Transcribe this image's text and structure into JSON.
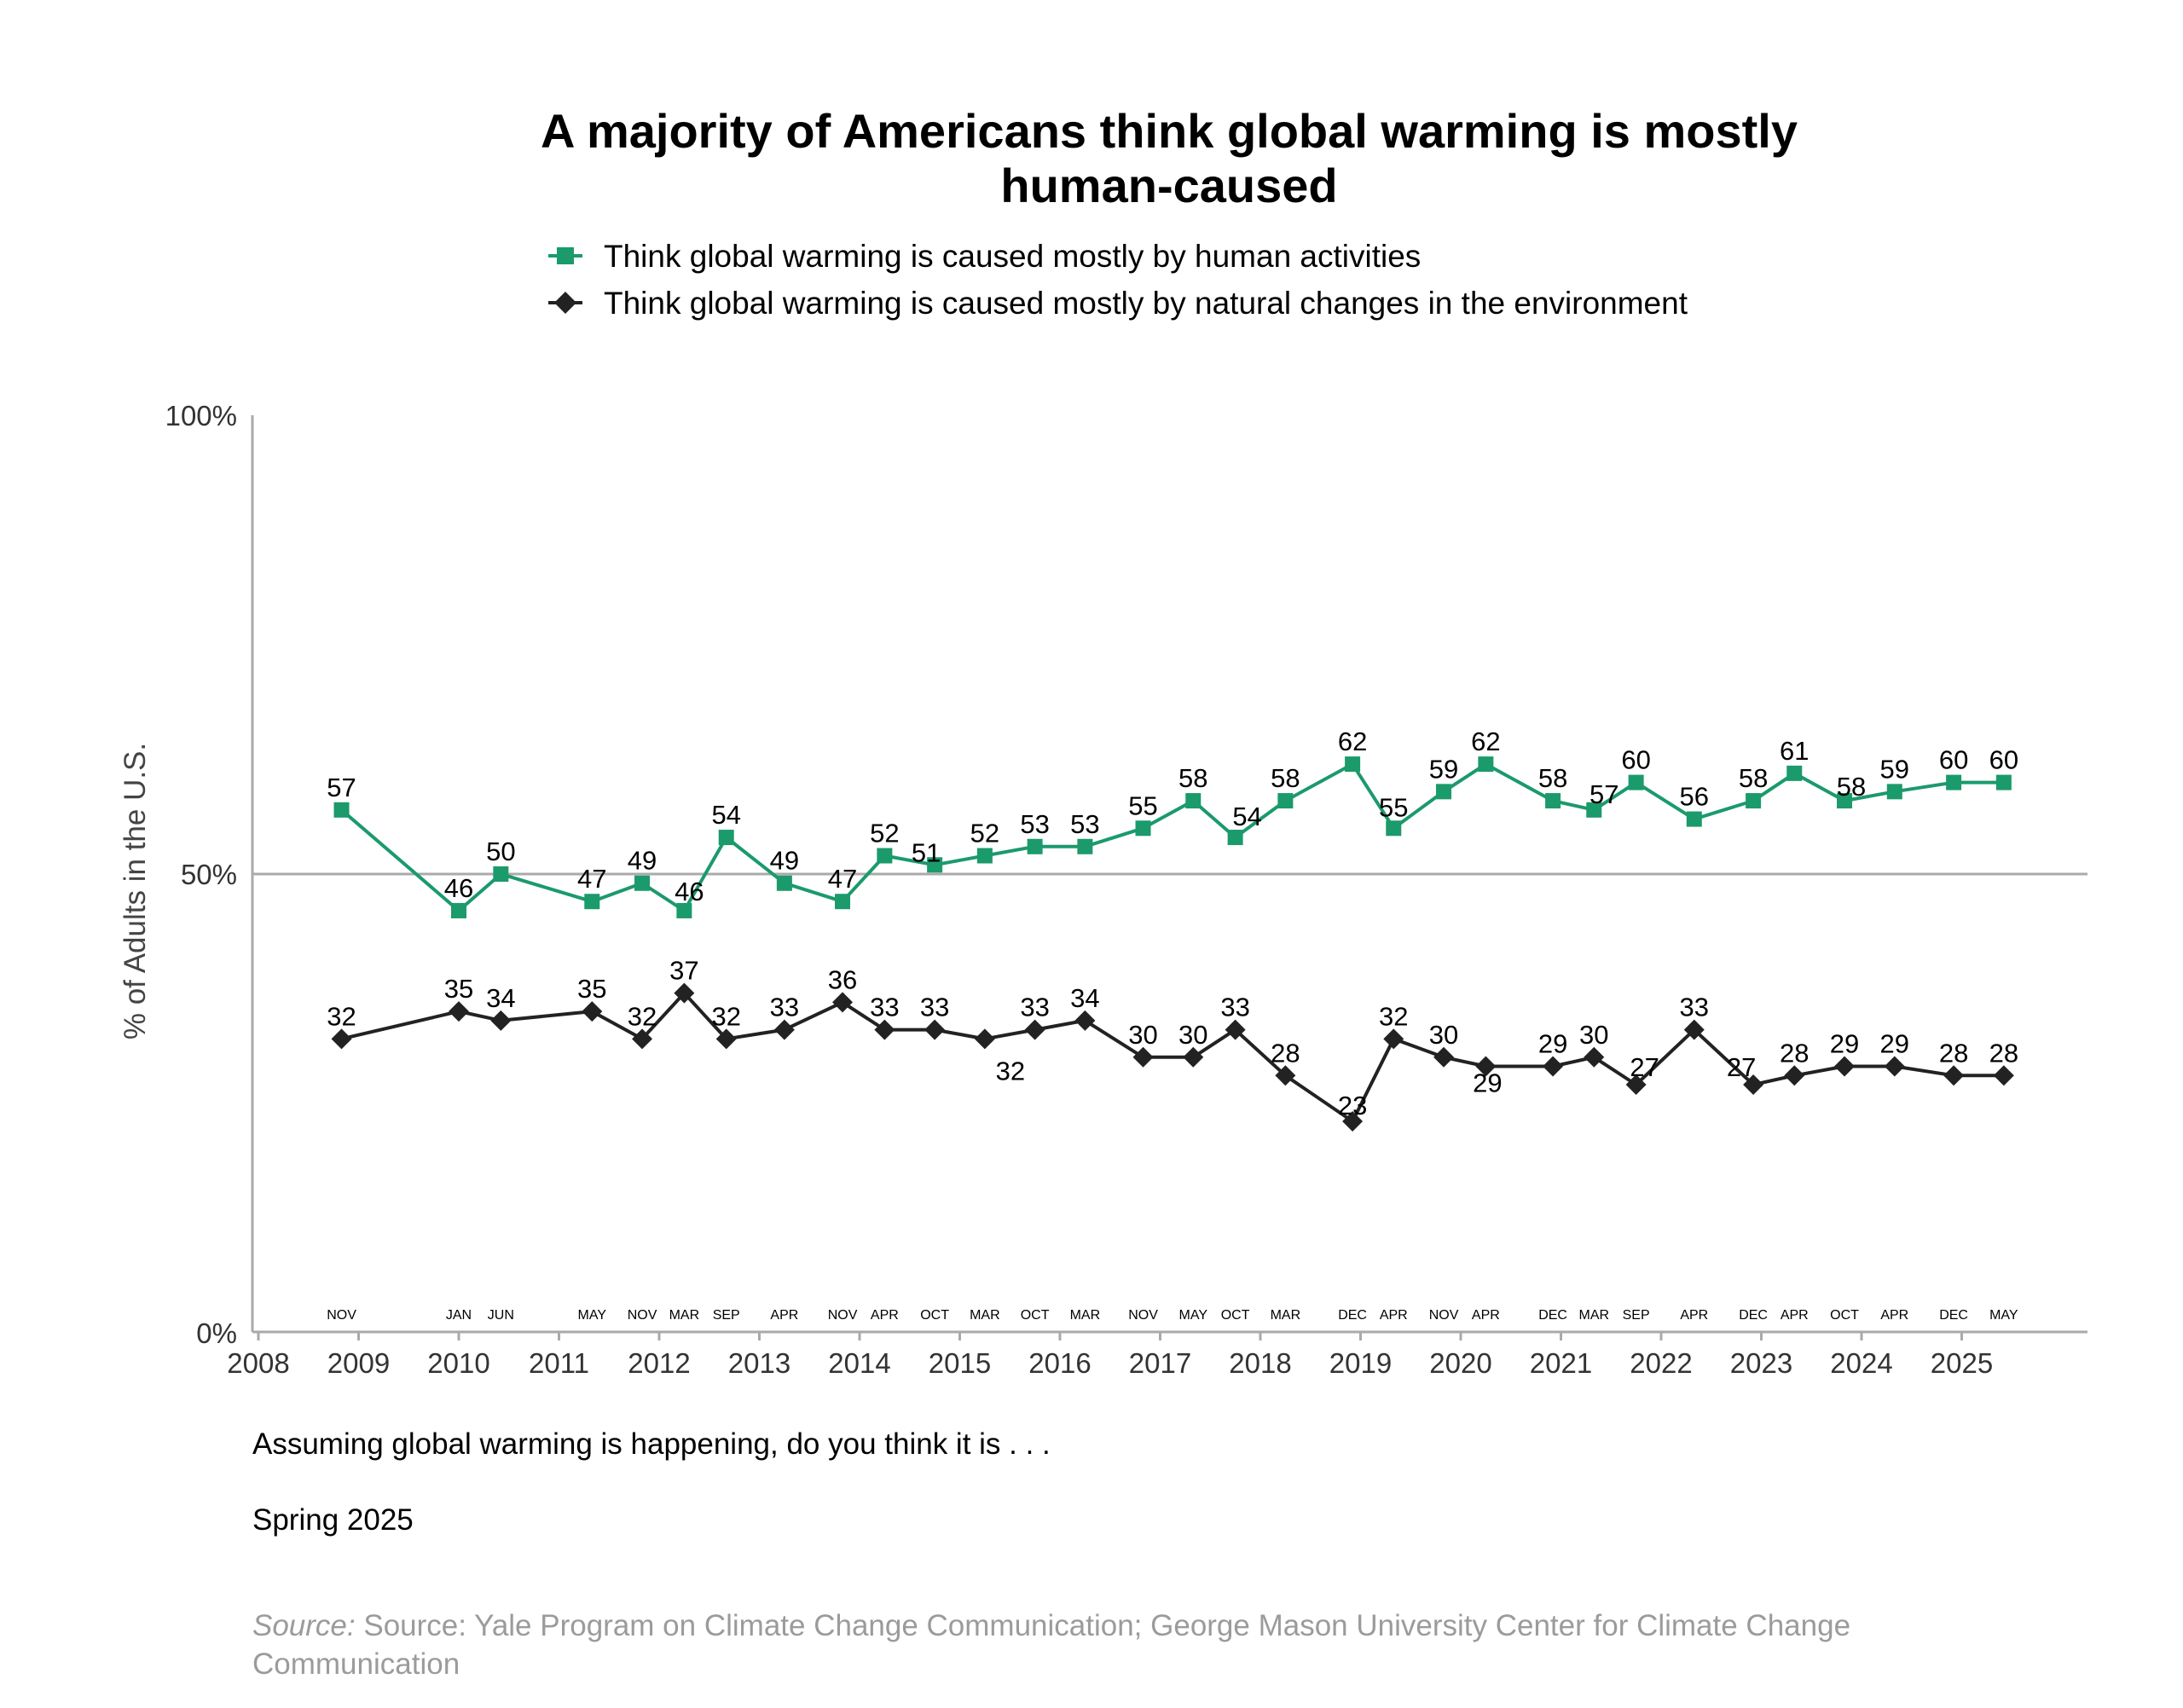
{
  "chart_data": {
    "type": "line",
    "title_lines": [
      "A majority of Americans think global warming is mostly",
      "human-caused"
    ],
    "ylabel": "% of Adults in the U.S.",
    "ylim": [
      0,
      100
    ],
    "yticks": [
      "0%",
      "50%",
      "100%"
    ],
    "xlim": [
      2008,
      2026.4
    ],
    "xticks": [
      "2008",
      "2009",
      "2010",
      "2011",
      "2012",
      "2013",
      "2014",
      "2015",
      "2016",
      "2017",
      "2018",
      "2019",
      "2020",
      "2021",
      "2022",
      "2023",
      "2024",
      "2025"
    ],
    "reference_line_y": 50,
    "grid": false,
    "legend_position": "top",
    "colors": {
      "human": "#1b9a6c",
      "natural": "#222222",
      "axis": "#aaaaaa"
    },
    "points": [
      {
        "month": "NOV",
        "x": 2008.83,
        "human": 57,
        "natural": 32
      },
      {
        "month": "JAN",
        "x": 2010.0,
        "human": 46,
        "natural": 35
      },
      {
        "month": "JUN",
        "x": 2010.42,
        "human": 50,
        "natural": 34
      },
      {
        "month": "MAY",
        "x": 2011.33,
        "human": 47,
        "natural": 35
      },
      {
        "month": "NOV",
        "x": 2011.83,
        "human": 49,
        "natural": 32
      },
      {
        "month": "MAR",
        "x": 2012.25,
        "human": 46,
        "natural": 37
      },
      {
        "month": "SEP",
        "x": 2012.67,
        "human": 54,
        "natural": 32
      },
      {
        "month": "APR",
        "x": 2013.25,
        "human": 49,
        "natural": 33
      },
      {
        "month": "NOV",
        "x": 2013.83,
        "human": 47,
        "natural": 36
      },
      {
        "month": "APR",
        "x": 2014.25,
        "human": 52,
        "natural": 33
      },
      {
        "month": "OCT",
        "x": 2014.75,
        "human": 51,
        "natural": 33
      },
      {
        "month": "MAR",
        "x": 2015.25,
        "human": 52,
        "natural": 32
      },
      {
        "month": "OCT",
        "x": 2015.75,
        "human": 53,
        "natural": 33
      },
      {
        "month": "MAR",
        "x": 2016.25,
        "human": 53,
        "natural": 34
      },
      {
        "month": "NOV",
        "x": 2016.83,
        "human": 55,
        "natural": 30
      },
      {
        "month": "MAY",
        "x": 2017.33,
        "human": 58,
        "natural": 30
      },
      {
        "month": "OCT",
        "x": 2017.75,
        "human": 54,
        "natural": 33
      },
      {
        "month": "MAR",
        "x": 2018.25,
        "human": 58,
        "natural": 28
      },
      {
        "month": "DEC",
        "x": 2018.92,
        "human": 62,
        "natural": 23
      },
      {
        "month": "APR",
        "x": 2019.33,
        "human": 55,
        "natural": 32
      },
      {
        "month": "NOV",
        "x": 2019.83,
        "human": 59,
        "natural": 30
      },
      {
        "month": "APR",
        "x": 2020.25,
        "human": 62,
        "natural": 29
      },
      {
        "month": "DEC",
        "x": 2020.92,
        "human": 58,
        "natural": 29
      },
      {
        "month": "MAR",
        "x": 2021.33,
        "human": 57,
        "natural": 30
      },
      {
        "month": "SEP",
        "x": 2021.75,
        "human": 60,
        "natural": 27
      },
      {
        "month": "APR",
        "x": 2022.33,
        "human": 56,
        "natural": 33
      },
      {
        "month": "DEC",
        "x": 2022.92,
        "human": 58,
        "natural": 27
      },
      {
        "month": "APR",
        "x": 2023.33,
        "human": 61,
        "natural": 28
      },
      {
        "month": "OCT",
        "x": 2023.83,
        "human": 58,
        "natural": 29
      },
      {
        "month": "APR",
        "x": 2024.33,
        "human": 59,
        "natural": 29
      },
      {
        "month": "DEC",
        "x": 2024.92,
        "human": 60,
        "natural": 28
      },
      {
        "month": "MAY",
        "x": 2025.42,
        "human": 60,
        "natural": 28
      }
    ],
    "series": [
      {
        "key": "human",
        "name": "Think global warming is caused mostly by human activities",
        "marker": "square"
      },
      {
        "key": "natural",
        "name": "Think global warming is caused mostly by natural changes in the environment",
        "marker": "diamond"
      }
    ]
  },
  "question": "Assuming global warming is happening, do you think it is . . .",
  "date_note": "Spring 2025",
  "source_prefix": "Source:",
  "source_lines": [
    "Source: Yale Program on Climate Change Communication; George Mason University Center for Climate Change",
    "Communication"
  ]
}
